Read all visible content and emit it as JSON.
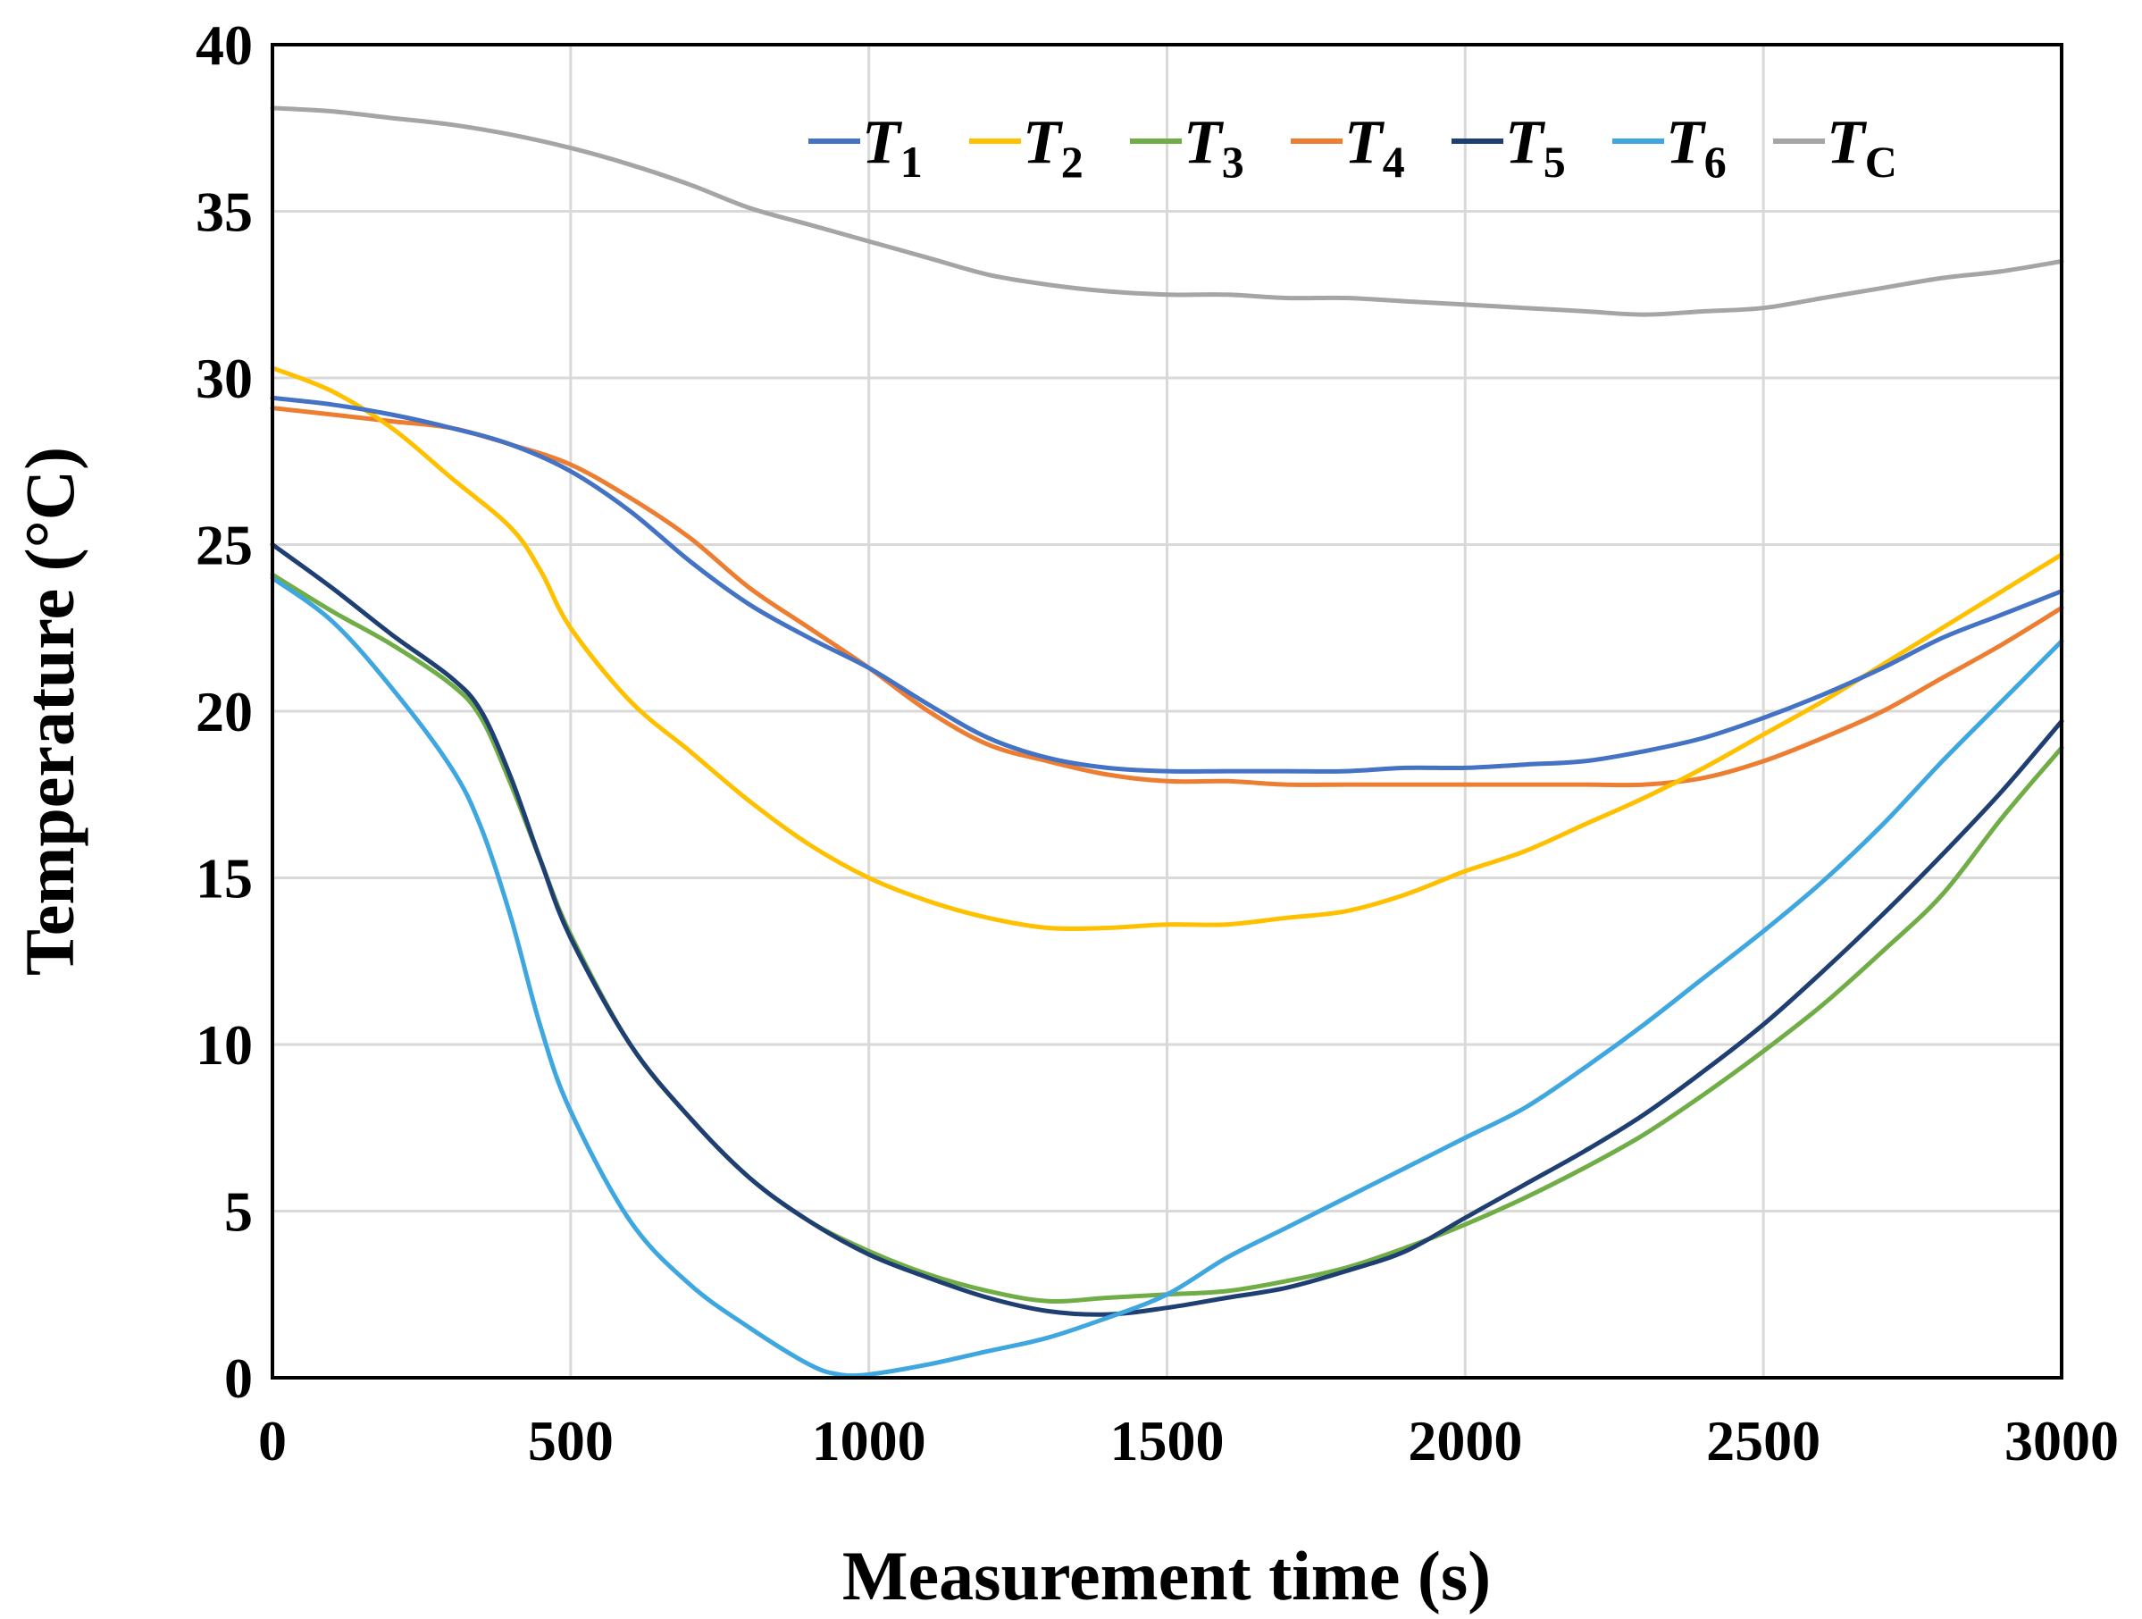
{
  "chart_data": {
    "type": "line",
    "title": "",
    "xlabel": "Measurement time (s)",
    "ylabel": "Temperature (°C)",
    "xlim": [
      0,
      3000
    ],
    "ylim": [
      0,
      40
    ],
    "xticks": [
      "0",
      "500",
      "1000",
      "1500",
      "2000",
      "2500",
      "3000"
    ],
    "yticks": [
      "0",
      "5",
      "10",
      "15",
      "20",
      "25",
      "30",
      "35",
      "40"
    ],
    "grid": true,
    "legend_position": "top-right",
    "series": [
      {
        "name": "T",
        "sub": "1",
        "color": "#4472c4",
        "x": [
          0,
          100,
          200,
          300,
          400,
          500,
          600,
          700,
          800,
          900,
          1000,
          1100,
          1200,
          1300,
          1400,
          1500,
          1600,
          1700,
          1800,
          1900,
          2000,
          2100,
          2200,
          2300,
          2400,
          2500,
          2600,
          2700,
          2800,
          2900,
          3000
        ],
        "y": [
          29.4,
          29.2,
          28.9,
          28.5,
          28.0,
          27.2,
          26.0,
          24.5,
          23.2,
          22.2,
          21.3,
          20.2,
          19.2,
          18.6,
          18.3,
          18.2,
          18.2,
          18.2,
          18.2,
          18.3,
          18.3,
          18.4,
          18.5,
          18.8,
          19.2,
          19.8,
          20.5,
          21.3,
          22.2,
          22.9,
          23.6
        ]
      },
      {
        "name": "T",
        "sub": "2",
        "color": "#ffc000",
        "x": [
          0,
          100,
          200,
          300,
          400,
          450,
          500,
          600,
          700,
          800,
          900,
          1000,
          1100,
          1200,
          1300,
          1400,
          1500,
          1600,
          1700,
          1800,
          1900,
          2000,
          2100,
          2200,
          2300,
          2400,
          2500,
          2600,
          2700,
          2800,
          2900,
          3000
        ],
        "y": [
          30.3,
          29.6,
          28.5,
          27.0,
          25.5,
          24.2,
          22.5,
          20.3,
          18.8,
          17.3,
          16.0,
          15.0,
          14.3,
          13.8,
          13.5,
          13.5,
          13.6,
          13.6,
          13.8,
          14.0,
          14.5,
          15.2,
          15.8,
          16.6,
          17.4,
          18.3,
          19.3,
          20.3,
          21.4,
          22.5,
          23.6,
          24.7
        ]
      },
      {
        "name": "T",
        "sub": "3",
        "color": "#70ad47",
        "x": [
          0,
          100,
          200,
          300,
          350,
          400,
          450,
          500,
          600,
          700,
          800,
          900,
          1000,
          1100,
          1200,
          1300,
          1400,
          1500,
          1600,
          1700,
          1800,
          1900,
          2000,
          2100,
          2200,
          2300,
          2400,
          2500,
          2600,
          2700,
          2800,
          2900,
          3000
        ],
        "y": [
          24.1,
          23.0,
          22.0,
          20.8,
          19.8,
          17.8,
          15.5,
          13.3,
          10.0,
          7.8,
          6.0,
          4.7,
          3.8,
          3.1,
          2.6,
          2.3,
          2.4,
          2.5,
          2.6,
          2.9,
          3.3,
          3.9,
          4.6,
          5.4,
          6.3,
          7.3,
          8.5,
          9.8,
          11.2,
          12.8,
          14.5,
          16.8,
          18.9
        ]
      },
      {
        "name": "T",
        "sub": "4",
        "color": "#ed7d31",
        "x": [
          0,
          100,
          200,
          300,
          400,
          500,
          600,
          700,
          800,
          900,
          1000,
          1100,
          1200,
          1300,
          1400,
          1500,
          1600,
          1700,
          1800,
          1900,
          2000,
          2100,
          2200,
          2300,
          2400,
          2500,
          2600,
          2700,
          2800,
          2900,
          3000
        ],
        "y": [
          29.1,
          28.9,
          28.7,
          28.5,
          28.0,
          27.4,
          26.4,
          25.2,
          23.7,
          22.5,
          21.3,
          20.0,
          19.0,
          18.5,
          18.1,
          17.9,
          17.9,
          17.8,
          17.8,
          17.8,
          17.8,
          17.8,
          17.8,
          17.8,
          18.0,
          18.5,
          19.2,
          20.0,
          21.0,
          22.0,
          23.1
        ]
      },
      {
        "name": "T",
        "sub": "5",
        "color": "#1f3f73",
        "x": [
          0,
          100,
          200,
          300,
          350,
          400,
          450,
          500,
          600,
          700,
          800,
          900,
          1000,
          1100,
          1200,
          1300,
          1400,
          1500,
          1600,
          1700,
          1800,
          1900,
          2000,
          2100,
          2200,
          2300,
          2400,
          2500,
          2600,
          2700,
          2800,
          2900,
          3000
        ],
        "y": [
          25.0,
          23.7,
          22.3,
          21.0,
          20.0,
          18.0,
          15.5,
          13.2,
          10.0,
          7.8,
          6.0,
          4.7,
          3.7,
          3.0,
          2.4,
          2.0,
          1.9,
          2.1,
          2.4,
          2.7,
          3.2,
          3.8,
          4.8,
          5.8,
          6.8,
          7.9,
          9.2,
          10.6,
          12.2,
          13.9,
          15.7,
          17.6,
          19.7
        ]
      },
      {
        "name": "T",
        "sub": "6",
        "color": "#3fa7e0",
        "x": [
          0,
          100,
          200,
          300,
          350,
          400,
          450,
          500,
          600,
          700,
          800,
          900,
          950,
          1000,
          1100,
          1200,
          1300,
          1400,
          1500,
          1600,
          1700,
          1800,
          1900,
          2000,
          2100,
          2200,
          2300,
          2400,
          2500,
          2600,
          2700,
          2800,
          2900,
          3000
        ],
        "y": [
          24.0,
          22.7,
          20.7,
          18.3,
          16.5,
          13.8,
          10.5,
          8.0,
          4.7,
          2.8,
          1.5,
          0.4,
          0.1,
          0.1,
          0.4,
          0.8,
          1.2,
          1.8,
          2.5,
          3.6,
          4.5,
          5.4,
          6.3,
          7.2,
          8.1,
          9.3,
          10.6,
          12.0,
          13.4,
          14.9,
          16.6,
          18.5,
          20.3,
          22.1
        ]
      },
      {
        "name": "T",
        "sub": "C",
        "color": "#a5a5a5",
        "x": [
          0,
          100,
          200,
          300,
          400,
          500,
          600,
          700,
          800,
          900,
          1000,
          1100,
          1200,
          1300,
          1400,
          1500,
          1600,
          1700,
          1800,
          1900,
          2000,
          2100,
          2200,
          2300,
          2400,
          2500,
          2600,
          2700,
          2800,
          2900,
          3000
        ],
        "y": [
          38.1,
          38.0,
          37.8,
          37.6,
          37.3,
          36.9,
          36.4,
          35.8,
          35.1,
          34.6,
          34.1,
          33.6,
          33.1,
          32.8,
          32.6,
          32.5,
          32.5,
          32.4,
          32.4,
          32.3,
          32.2,
          32.1,
          32.0,
          31.9,
          32.0,
          32.1,
          32.4,
          32.7,
          33.0,
          33.2,
          33.5
        ]
      }
    ]
  }
}
